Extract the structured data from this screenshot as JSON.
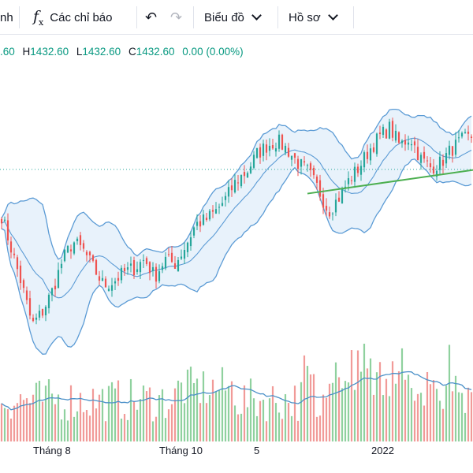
{
  "toolbar": {
    "partial_label": "nh",
    "indicators_icon": "fx-icon",
    "indicators_label": "Các chỉ báo",
    "undo_icon": "undo-icon",
    "redo_icon": "redo-icon",
    "chart_label": "Biểu đồ",
    "profile_label": "Hồ sơ"
  },
  "ohlc": {
    "open_value": ".60",
    "high_key": "H",
    "high_value": "1432.60",
    "low_key": "L",
    "low_value": "1432.60",
    "close_key": "C",
    "close_value": "1432.60",
    "change": "0.00 (0.00%)"
  },
  "colors": {
    "up": "#26a69a",
    "down": "#ef5350",
    "bollinger_band": "#5b9bd5",
    "bollinger_fill": "#e8f2fb",
    "trendline": "#4caf50",
    "volume_ma": "#4a90c8"
  },
  "chart_data": {
    "type": "candlestick",
    "indicators": [
      "Bollinger Bands",
      "Volume",
      "Volume MA"
    ],
    "price_series": [
      1380,
      1340,
      1300,
      1255,
      1270,
      1295,
      1330,
      1350,
      1340,
      1320,
      1300,
      1305,
      1315,
      1320,
      1330,
      1310,
      1330,
      1325,
      1345,
      1370,
      1375,
      1385,
      1400,
      1420,
      1430,
      1450,
      1460,
      1465,
      1455,
      1440,
      1430,
      1410,
      1385,
      1400,
      1420,
      1435,
      1455,
      1470,
      1480,
      1460,
      1470,
      1445,
      1435,
      1440,
      1455,
      1465,
      1470
    ],
    "trendline": {
      "from": 1405,
      "to": 1432
    },
    "dotted_level": 1432.6,
    "x_labels": [
      "Tháng 8",
      "Tháng 10",
      "5",
      "2022"
    ]
  }
}
